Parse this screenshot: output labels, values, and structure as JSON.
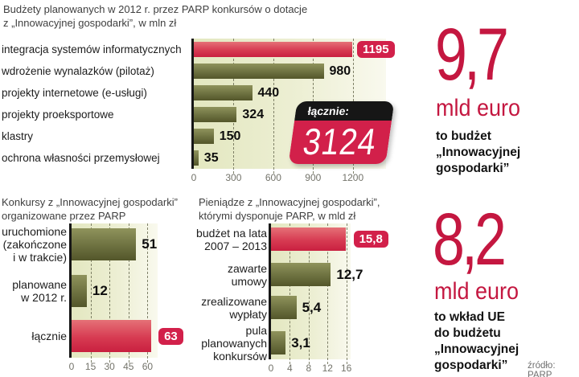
{
  "page": {
    "source": "źródło: PARP"
  },
  "colors": {
    "accent_red": "#d2204a",
    "big_number_red": "#c41740",
    "bar_olive": "#6d7140",
    "plot_background": "#e3e7c0",
    "title_gray": "#3f3f3f"
  },
  "chart_data": [
    {
      "type": "bar",
      "orientation": "horizontal",
      "title": "Budżety planowanych w 2012 r. przez PARP konkursów o dotacje z „Innowacyjnej gospodarki”, w mln zł",
      "title_lines": [
        "Budżety planowanych w 2012 r. przez PARP konkursów o dotacje",
        "z „Innowacyjnej gospodarki”, w mln zł"
      ],
      "unit": "mln zł",
      "categories": [
        "integracja systemów informatycznych",
        "wdrożenie wynalazków (pilotaż)",
        "projekty internetowe (e-usługi)",
        "projekty proeksportowe",
        "klastry",
        "ochrona własności przemysłowej"
      ],
      "values": [
        1195,
        980,
        440,
        324,
        150,
        35
      ],
      "value_labels": [
        "1195",
        "980",
        "440",
        "324",
        "150",
        "35"
      ],
      "highlight_indices": [
        0
      ],
      "x_ticks": [
        0,
        300,
        600,
        900,
        1200
      ],
      "x_tick_labels": [
        "0",
        "300",
        "600",
        "900",
        "1200"
      ],
      "xlim": [
        0,
        1450
      ],
      "grid": true,
      "legend": "none",
      "total_badge": {
        "label": "łącznie:",
        "value": "3124"
      }
    },
    {
      "type": "bar",
      "orientation": "horizontal",
      "title": "Konkursy z „Innowacyjnej gospodarki” organizowane przez PARP",
      "title_lines": [
        "Konkursy z „Innowacyjnej gospodarki”",
        "organizowane przez PARP"
      ],
      "categories": [
        "uruchomione\n(zakończone\ni w trakcie)",
        "planowane\nw 2012 r.",
        "łącznie"
      ],
      "values": [
        51,
        12,
        63
      ],
      "value_labels": [
        "51",
        "12",
        "63"
      ],
      "highlight_indices": [
        2
      ],
      "x_ticks": [
        0,
        15,
        30,
        45,
        60
      ],
      "x_tick_labels": [
        "0",
        "15",
        "30",
        "45",
        "60"
      ],
      "xlim": [
        0,
        68
      ],
      "grid": true,
      "legend": "none"
    },
    {
      "type": "bar",
      "orientation": "horizontal",
      "title": "Pieniądze z „Innowacyjnej gospodarki”, którymi dysponuje PARP, w mld zł",
      "title_lines": [
        "Pieniądze z „Innowacyjnej gospodarki”,",
        "którymi dysponuje PARP, w mld zł"
      ],
      "unit": "mld zł",
      "categories": [
        "budżet na lata\n2007 – 2013",
        "zawarte umowy",
        "zrealizowane\nwypłaty",
        "pula\nplanowanych\nkonkursów"
      ],
      "values": [
        15.8,
        12.7,
        5.4,
        3.1
      ],
      "value_labels": [
        "15,8",
        "12,7",
        "5,4",
        "3,1"
      ],
      "highlight_indices": [
        0
      ],
      "x_ticks": [
        0,
        4,
        8,
        12,
        16
      ],
      "x_tick_labels": [
        "0",
        "4",
        "8",
        "12",
        "16"
      ],
      "xlim": [
        0,
        16.9
      ],
      "grid": true,
      "legend": "none"
    }
  ],
  "stats": [
    {
      "value": "9,7",
      "unit": "mld euro",
      "description_lines": [
        "to budżet",
        "„Innowacyjnej",
        "gospodarki”"
      ]
    },
    {
      "value": "8,2",
      "unit": "mld euro",
      "description_lines": [
        "to wkład UE",
        "do budżetu",
        "„Innowacyjnej",
        "gospodarki”"
      ]
    }
  ]
}
